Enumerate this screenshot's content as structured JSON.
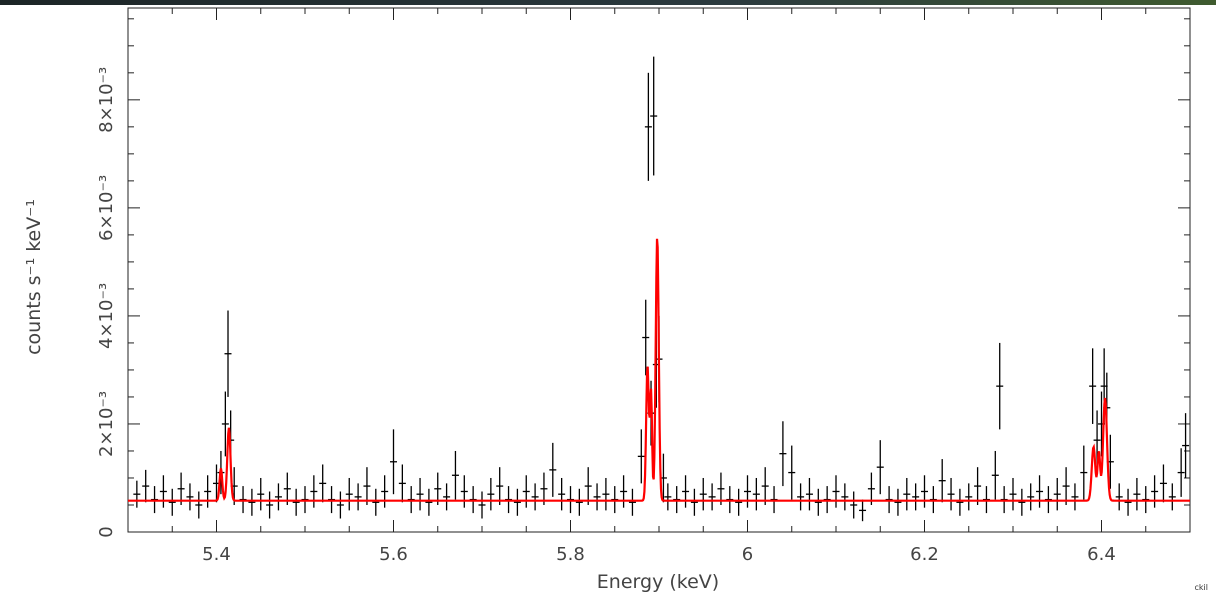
{
  "chart_data": {
    "type": "scatter",
    "title": "",
    "xlabel": "Energy (keV)",
    "ylabel": "counts s⁻¹ keV⁻¹",
    "xlim": [
      5.3,
      6.5
    ],
    "ylim": [
      0,
      0.0097
    ],
    "xticks": [
      5.4,
      5.6,
      5.8,
      6.0,
      6.2,
      6.4
    ],
    "xtick_labels": [
      "5.4",
      "5.6",
      "5.8",
      "6",
      "6.2",
      "6.4"
    ],
    "yticks": [
      0,
      0.002,
      0.004,
      0.006,
      0.008
    ],
    "ytick_labels": [
      "0",
      "2×10⁻³",
      "4×10⁻³",
      "6×10⁻³",
      "8×10⁻³"
    ],
    "grid": false,
    "colors": {
      "data": "#000000",
      "model": "#ff0000"
    },
    "series": [
      {
        "style": "crosses with error bars",
        "x": [
          5.31,
          5.32,
          5.33,
          5.34,
          5.35,
          5.36,
          5.37,
          5.38,
          5.39,
          5.4,
          5.405,
          5.41,
          5.413,
          5.416,
          5.42,
          5.43,
          5.44,
          5.45,
          5.46,
          5.47,
          5.48,
          5.49,
          5.5,
          5.51,
          5.52,
          5.53,
          5.54,
          5.55,
          5.56,
          5.57,
          5.58,
          5.59,
          5.6,
          5.61,
          5.62,
          5.63,
          5.64,
          5.65,
          5.66,
          5.67,
          5.68,
          5.69,
          5.7,
          5.71,
          5.72,
          5.73,
          5.74,
          5.75,
          5.76,
          5.77,
          5.78,
          5.79,
          5.8,
          5.81,
          5.82,
          5.83,
          5.84,
          5.85,
          5.86,
          5.87,
          5.88,
          5.885,
          5.888,
          5.891,
          5.894,
          5.897,
          5.9,
          5.905,
          5.91,
          5.92,
          5.93,
          5.94,
          5.95,
          5.96,
          5.97,
          5.98,
          5.99,
          6.0,
          6.01,
          6.02,
          6.03,
          6.04,
          6.05,
          6.06,
          6.07,
          6.08,
          6.09,
          6.1,
          6.11,
          6.12,
          6.13,
          6.14,
          6.15,
          6.16,
          6.17,
          6.18,
          6.19,
          6.2,
          6.21,
          6.22,
          6.23,
          6.24,
          6.25,
          6.26,
          6.27,
          6.28,
          6.285,
          6.29,
          6.3,
          6.31,
          6.32,
          6.33,
          6.34,
          6.35,
          6.36,
          6.37,
          6.38,
          6.39,
          6.395,
          6.4,
          6.403,
          6.406,
          6.41,
          6.42,
          6.43,
          6.44,
          6.45,
          6.46,
          6.47,
          6.48,
          6.49,
          6.495
        ],
        "y": [
          0.0007,
          0.00085,
          0.0006,
          0.00075,
          0.00055,
          0.0008,
          0.00065,
          0.0005,
          0.00075,
          0.0009,
          0.0011,
          0.002,
          0.0033,
          0.0017,
          0.00085,
          0.0006,
          0.00055,
          0.0007,
          0.0005,
          0.00065,
          0.0008,
          0.00055,
          0.0006,
          0.00075,
          0.0009,
          0.0006,
          0.0005,
          0.0007,
          0.00065,
          0.00085,
          0.00055,
          0.00075,
          0.0013,
          0.0009,
          0.0006,
          0.0007,
          0.00055,
          0.0008,
          0.00065,
          0.00105,
          0.00075,
          0.0006,
          0.0005,
          0.0007,
          0.00085,
          0.0006,
          0.00055,
          0.00075,
          0.00065,
          0.0008,
          0.00115,
          0.0007,
          0.0006,
          0.00055,
          0.00085,
          0.00065,
          0.0007,
          0.0006,
          0.00075,
          0.00055,
          0.0014,
          0.0036,
          0.0075,
          0.0022,
          0.0077,
          0.0031,
          0.0032,
          0.001,
          0.00065,
          0.0006,
          0.00075,
          0.00055,
          0.0007,
          0.00065,
          0.0008,
          0.0006,
          0.00055,
          0.00075,
          0.0007,
          0.00085,
          0.0006,
          0.00145,
          0.0011,
          0.00065,
          0.0007,
          0.00055,
          0.0006,
          0.00075,
          0.00065,
          0.0005,
          0.0004,
          0.0008,
          0.0012,
          0.0006,
          0.00055,
          0.0007,
          0.00065,
          0.00075,
          0.0006,
          0.00095,
          0.0007,
          0.00055,
          0.00065,
          0.00085,
          0.0006,
          0.00105,
          0.0027,
          0.0006,
          0.0007,
          0.00055,
          0.00065,
          0.00075,
          0.0006,
          0.0007,
          0.00085,
          0.00065,
          0.0011,
          0.0027,
          0.0017,
          0.002,
          0.0027,
          0.0023,
          0.0013,
          0.00065,
          0.00055,
          0.0007,
          0.0006,
          0.00075,
          0.0009,
          0.00065,
          0.0011,
          0.0016
        ],
        "yerr": [
          0.00025,
          0.0003,
          0.00025,
          0.0003,
          0.00025,
          0.0003,
          0.00025,
          0.00025,
          0.0003,
          0.00035,
          0.0004,
          0.0006,
          0.0008,
          0.00055,
          0.00035,
          0.00025,
          0.00025,
          0.0003,
          0.00025,
          0.00025,
          0.0003,
          0.00025,
          0.00025,
          0.0003,
          0.00035,
          0.00025,
          0.00025,
          0.0003,
          0.00025,
          0.00035,
          0.00025,
          0.0003,
          0.0006,
          0.00035,
          0.00025,
          0.0003,
          0.00025,
          0.0003,
          0.00025,
          0.00045,
          0.0003,
          0.00025,
          0.00025,
          0.0003,
          0.00035,
          0.00025,
          0.00025,
          0.0003,
          0.00025,
          0.0003,
          0.0005,
          0.0003,
          0.00025,
          0.00025,
          0.00035,
          0.00025,
          0.0003,
          0.00025,
          0.0003,
          0.00025,
          0.0005,
          0.0007,
          0.001,
          0.0006,
          0.0011,
          0.0008,
          0.0008,
          0.00045,
          0.00025,
          0.00025,
          0.0003,
          0.00025,
          0.0003,
          0.00025,
          0.0003,
          0.00025,
          0.00025,
          0.0003,
          0.0003,
          0.00035,
          0.00025,
          0.0006,
          0.0005,
          0.00025,
          0.0003,
          0.00025,
          0.00025,
          0.0003,
          0.00025,
          0.00025,
          0.0002,
          0.0003,
          0.0005,
          0.00025,
          0.00025,
          0.0003,
          0.00025,
          0.0003,
          0.00025,
          0.0004,
          0.0003,
          0.00025,
          0.00025,
          0.00035,
          0.00025,
          0.00045,
          0.0008,
          0.00025,
          0.0003,
          0.00025,
          0.00025,
          0.0003,
          0.00025,
          0.0003,
          0.00035,
          0.00025,
          0.0005,
          0.0007,
          0.00055,
          0.0006,
          0.0007,
          0.00065,
          0.0005,
          0.00025,
          0.00025,
          0.0003,
          0.00025,
          0.0003,
          0.00035,
          0.00025,
          0.00045,
          0.0006
        ]
      },
      {
        "style": "solid line",
        "continuum": 0.00058,
        "lines": [
          {
            "center": 5.405,
            "amp": 0.0006,
            "width": 0.0015
          },
          {
            "center": 5.414,
            "amp": 0.00135,
            "width": 0.0018
          },
          {
            "center": 5.887,
            "amp": 0.0025,
            "width": 0.0015
          },
          {
            "center": 5.891,
            "amp": 0.002,
            "width": 0.0012
          },
          {
            "center": 5.898,
            "amp": 0.0049,
            "width": 0.0017
          },
          {
            "center": 6.391,
            "amp": 0.001,
            "width": 0.002
          },
          {
            "center": 6.397,
            "amp": 0.0009,
            "width": 0.0015
          },
          {
            "center": 6.404,
            "amp": 0.0019,
            "width": 0.0022
          }
        ]
      }
    ]
  },
  "credit": "ckil"
}
